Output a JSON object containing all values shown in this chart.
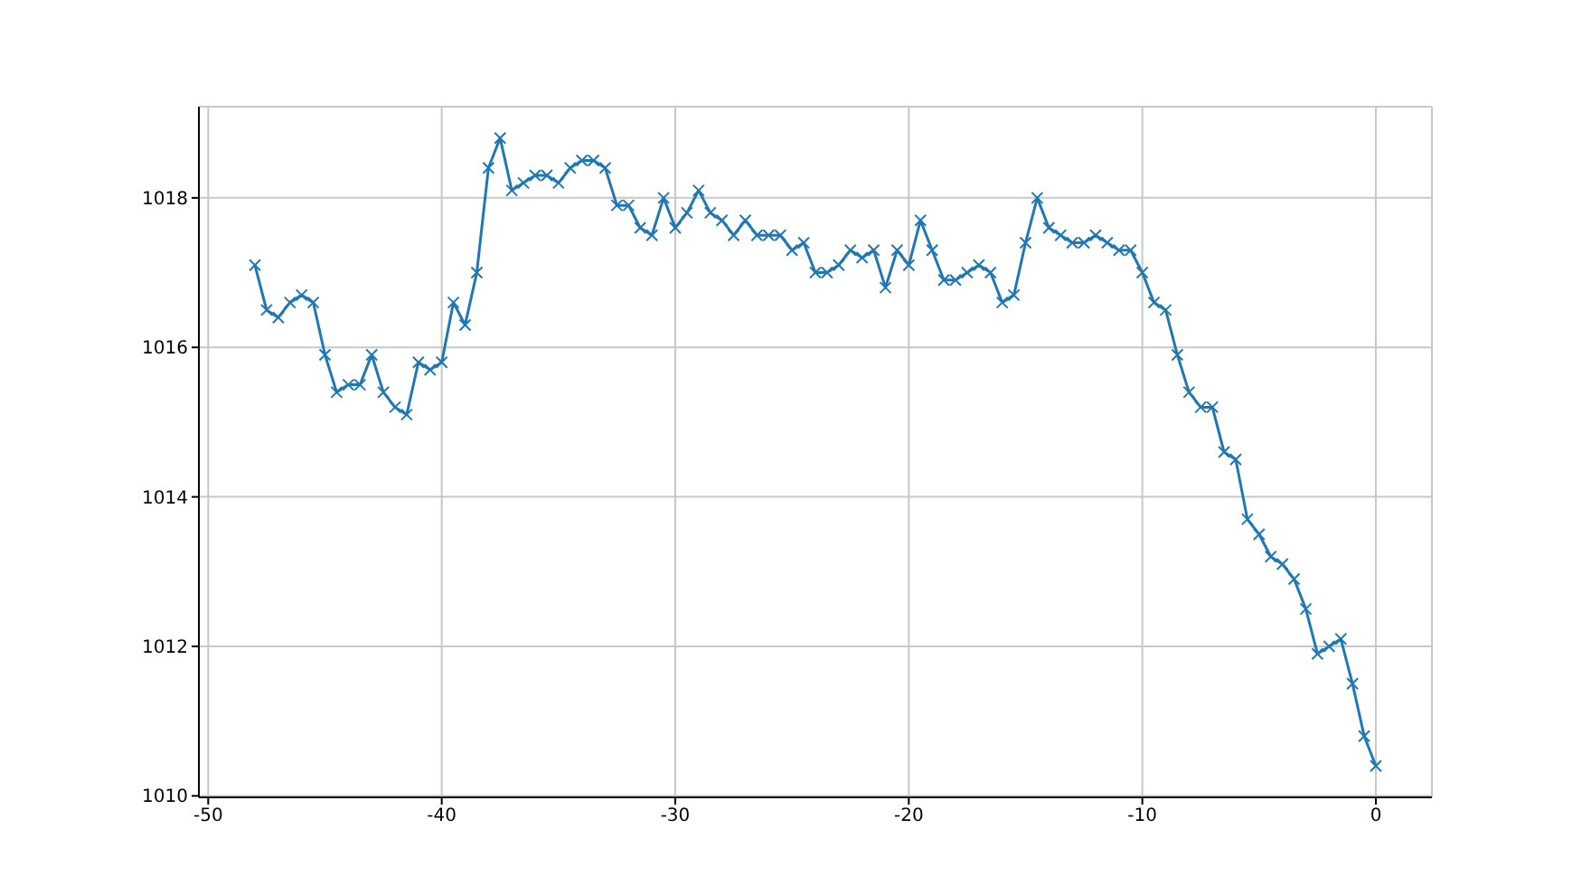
{
  "chart_data": {
    "type": "line",
    "x": [
      -48,
      -47.5,
      -47,
      -46.5,
      -46,
      -45.5,
      -45,
      -44.5,
      -44,
      -43.5,
      -43,
      -42.5,
      -42,
      -41.5,
      -41,
      -40.5,
      -40,
      -39.5,
      -39,
      -38.5,
      -38,
      -37.5,
      -37,
      -36.5,
      -36,
      -35.5,
      -35,
      -34.5,
      -34,
      -33.5,
      -33,
      -32.5,
      -32,
      -31.5,
      -31,
      -30.5,
      -30,
      -29.5,
      -29,
      -28.5,
      -28,
      -27.5,
      -27,
      -26.5,
      -26,
      -25.5,
      -25,
      -24.5,
      -24,
      -23.5,
      -23,
      -22.5,
      -22,
      -21.5,
      -21,
      -20.5,
      -20,
      -19.5,
      -19,
      -18.5,
      -18,
      -17.5,
      -17,
      -16.5,
      -16,
      -15.5,
      -15,
      -14.5,
      -14,
      -13.5,
      -13,
      -12.5,
      -12,
      -11.5,
      -11,
      -10.5,
      -10,
      -9.5,
      -9,
      -8.5,
      -8,
      -7.5,
      -7,
      -6.5,
      -6,
      -5.5,
      -5,
      -4.5,
      -4,
      -3.5,
      -3,
      -2.5,
      -2,
      -1.5,
      -1,
      -0.5,
      0
    ],
    "series": [
      {
        "color": "#1f77b4",
        "values": [
          1017.1,
          1016.5,
          1016.4,
          1016.6,
          1016.7,
          1016.6,
          1015.9,
          1015.4,
          1015.5,
          1015.5,
          1015.9,
          1015.4,
          1015.2,
          1015.1,
          1015.8,
          1015.7,
          1015.8,
          1016.6,
          1016.3,
          1017.0,
          1018.4,
          1018.8,
          1018.1,
          1018.2,
          1018.3,
          1018.3,
          1018.2,
          1018.4,
          1018.5,
          1018.5,
          1018.4,
          1017.9,
          1017.9,
          1017.6,
          1017.5,
          1018.0,
          1017.6,
          1017.8,
          1018.1,
          1017.8,
          1017.7,
          1017.5,
          1017.7,
          1017.5,
          1017.5,
          1017.5,
          1017.3,
          1017.4,
          1017.0,
          1017.0,
          1017.1,
          1017.3,
          1017.2,
          1017.3,
          1016.8,
          1017.3,
          1017.1,
          1017.7,
          1017.3,
          1016.9,
          1016.9,
          1017.0,
          1017.1,
          1017.0,
          1016.6,
          1016.7,
          1017.4,
          1018.0,
          1017.6,
          1017.5,
          1017.4,
          1017.4,
          1017.5,
          1017.4,
          1017.3,
          1017.3,
          1017.0,
          1016.6,
          1016.5,
          1015.9,
          1015.4,
          1015.2,
          1015.2,
          1014.6,
          1014.5,
          1013.7,
          1013.5,
          1013.2,
          1013.1,
          1012.9,
          1012.5,
          1011.9,
          1012.0,
          1012.1,
          1011.5,
          1010.8,
          1010.4
        ]
      }
    ],
    "xlim": [
      -50.4,
      2.4
    ],
    "xticks": [
      -50,
      -40,
      -30,
      -20,
      -10,
      0
    ],
    "ylim": [
      1009.98,
      1019.22
    ],
    "yticks": [
      1010,
      1012,
      1014,
      1016,
      1018
    ],
    "grid": true,
    "marker": "cross",
    "line_style": "solid"
  }
}
